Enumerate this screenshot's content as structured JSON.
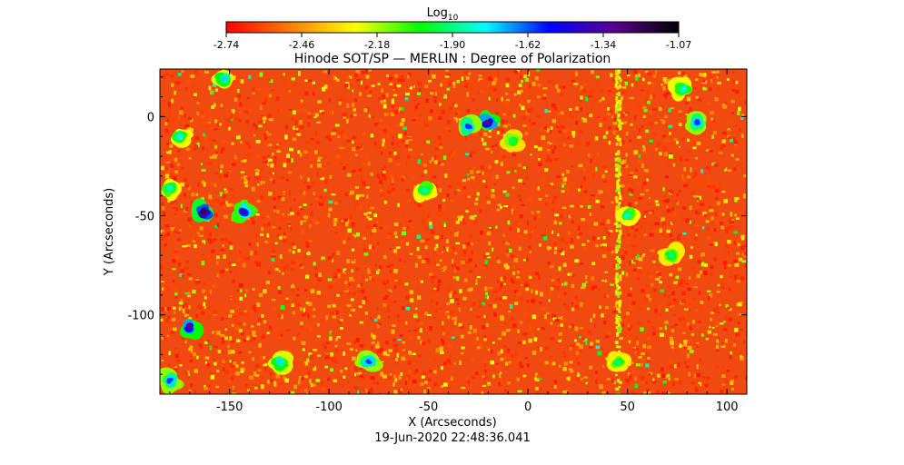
{
  "chart_data": {
    "type": "heatmap",
    "title": "Hinode SOT/SP — MERLIN : Degree of Polarization",
    "xlabel": "X (Arcseconds)",
    "ylabel": "Y (Arcseconds)",
    "timestamp": "19-Jun-2020 22:48:36.041",
    "xlim": [
      -185,
      110
    ],
    "ylim": [
      -140,
      24
    ],
    "x_ticks": [
      -150,
      -100,
      -50,
      0,
      50,
      100
    ],
    "y_ticks": [
      0,
      -50,
      -100
    ],
    "colorbar": {
      "label_main": "Log",
      "label_sub": "10",
      "min": -2.74,
      "max": -1.07,
      "ticks": [
        "-2.74",
        "-2.46",
        "-2.18",
        "-1.90",
        "-1.62",
        "-1.34",
        "-1.07"
      ],
      "colors": [
        "#ff0000",
        "#ff7f00",
        "#ffff00",
        "#00ff00",
        "#00ffff",
        "#0000ff",
        "#5a0090",
        "#000000"
      ]
    },
    "background_level": -2.62,
    "vertical_stripe_x": 45,
    "patches": [
      {
        "x": -153,
        "y": 19,
        "v": -1.75
      },
      {
        "x": -20,
        "y": -3,
        "v": -1.3
      },
      {
        "x": -30,
        "y": -5,
        "v": -1.6
      },
      {
        "x": -163,
        "y": -48,
        "v": -1.2
      },
      {
        "x": -143,
        "y": -48,
        "v": -1.4
      },
      {
        "x": -170,
        "y": -106,
        "v": -1.3
      },
      {
        "x": -180,
        "y": -133,
        "v": -1.6
      },
      {
        "x": -80,
        "y": -124,
        "v": -1.6
      },
      {
        "x": -52,
        "y": -37,
        "v": -1.85
      },
      {
        "x": 85,
        "y": -3,
        "v": -1.6
      },
      {
        "x": 78,
        "y": 14,
        "v": -1.8
      },
      {
        "x": -175,
        "y": -10,
        "v": -1.8
      },
      {
        "x": -125,
        "y": -124,
        "v": -1.75
      },
      {
        "x": -180,
        "y": -36,
        "v": -1.85
      },
      {
        "x": 45,
        "y": -124,
        "v": -1.9
      },
      {
        "x": 50,
        "y": -50,
        "v": -1.85
      },
      {
        "x": -8,
        "y": -12,
        "v": -1.95
      },
      {
        "x": 72,
        "y": -70,
        "v": -1.9
      }
    ]
  }
}
